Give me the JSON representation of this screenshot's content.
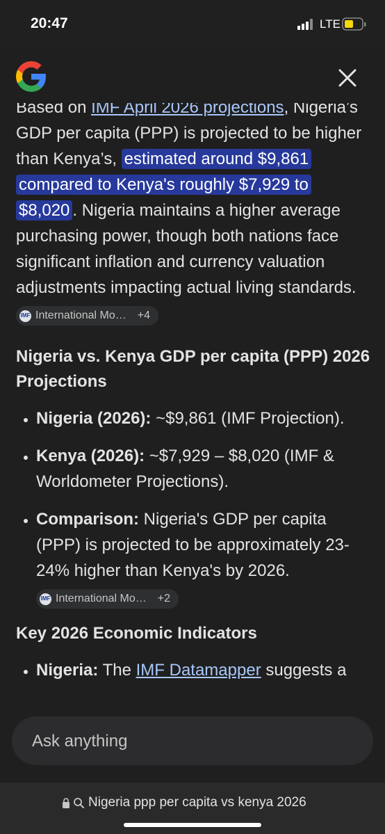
{
  "status_bar": {
    "time": "20:47",
    "network": "LTE"
  },
  "answer": {
    "intro": {
      "lead": "Based on ",
      "lead_link": "IMF April 2026 projections",
      "lead_end": ",",
      "text": " Nigeria’s GDP per capita (PPP) is projected to be higher than Kenya’s, ",
      "highlight": "estimated around $9,861 compared to Kenya's roughly $7,929 to $8,020",
      "rest": ". Nigeria maintains a higher average purchasing power, though both nations face significant inflation and currency valuation adjustments impacting actual living standards.",
      "source": {
        "name": "International Mo…",
        "more": "+4"
      }
    },
    "heading_1": "Nigeria vs. Kenya GDP per capita (PPP) 2026 Projections",
    "bullets_1": [
      {
        "label": "Nigeria (2026):",
        "text": " ~$9,861 (IMF Projection)."
      },
      {
        "label": "Kenya (2026):",
        "text": " ~$7,929 – $8,020 (IMF & Worldometer Projections)."
      },
      {
        "label": "Comparison:",
        "text": " Nigeria's GDP per capita (PPP) is projected to be approximately 23-24% higher than Kenya's by 2026.",
        "source": {
          "name": "International Mo…",
          "more": "+2"
        }
      }
    ],
    "heading_2": "Key 2026 Economic Indicators",
    "bullets_2": [
      {
        "label": "Nigeria:",
        "text": " The ",
        "link": "IMF Datamapper",
        "rest": " suggests a"
      }
    ]
  },
  "input": {
    "placeholder": "Ask anything"
  },
  "url_bar": {
    "url": "Nigeria ppp per capita vs kenya 2026"
  }
}
